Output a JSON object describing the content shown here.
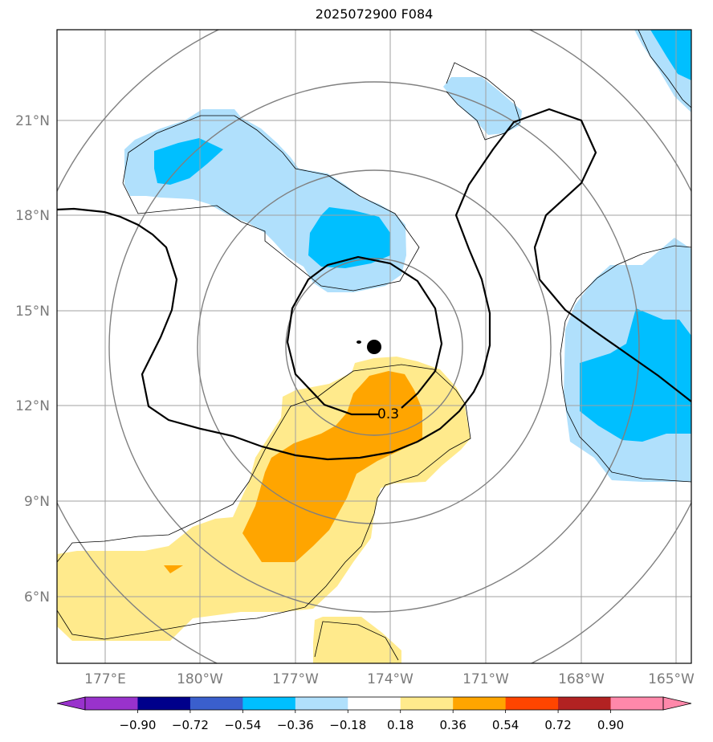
{
  "title": "2025072900 F084",
  "map": {
    "lat_labels": [
      "21°N",
      "18°N",
      "15°N",
      "12°N",
      "9°N",
      "6°N"
    ],
    "lon_labels": [
      "177°E",
      "180°W",
      "177°W",
      "174°W",
      "171°W",
      "168°W",
      "165°W"
    ],
    "contour_label": "0.3",
    "colors": {
      "light_blue": "#b0e0fc",
      "blue": "#00bfff",
      "light_yellow": "#ffea8c",
      "orange": "#ffa500",
      "grid": "#a0a0a0",
      "circle": "#808080",
      "contour": "#000000"
    }
  },
  "colorbar": {
    "labels": [
      "−0.90",
      "−0.72",
      "−0.54",
      "−0.36",
      "−0.18",
      "0.18",
      "0.36",
      "0.54",
      "0.72",
      "0.90"
    ],
    "colors": [
      "#9932cc",
      "#9932cc",
      "#00008b",
      "#3a5fcd",
      "#00bfff",
      "#b0e0fc",
      "#ffffff",
      "#ffea8c",
      "#ffa500",
      "#ff4500",
      "#b22222",
      "#ff88aa",
      "#ff88aa"
    ]
  }
}
